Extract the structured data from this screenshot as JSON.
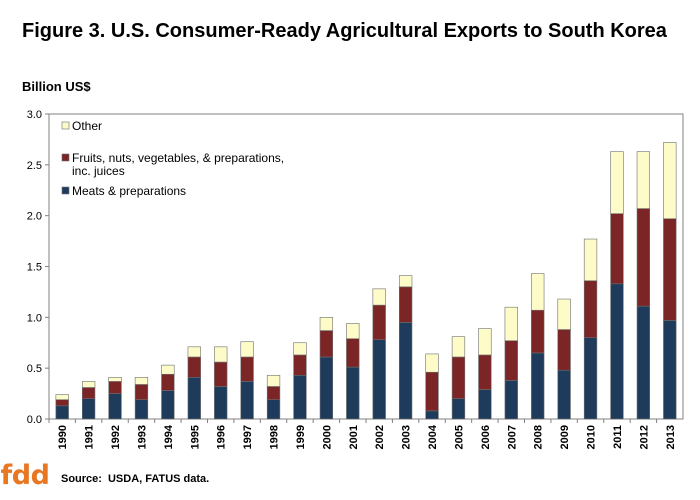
{
  "title": "Figure 3. U.S. Consumer-Ready Agricultural Exports to South Korea",
  "colors": {
    "other": "#fdfbc8",
    "fruits": "#7b2526",
    "meats": "#1f3b5c",
    "outline": "#6f6f6f",
    "plot_background": "#ffffff",
    "logo": "#e87722"
  },
  "logo": {
    "text": "fdd"
  },
  "source": {
    "label": "Source:",
    "value": "USDA, FATUS data."
  },
  "chart_data": {
    "type": "bar",
    "stacked": true,
    "ylabel": "Billion US$",
    "xlabel": "",
    "ylim": [
      0,
      3.0
    ],
    "yticks": [
      "0.0",
      "0.5",
      "1.0",
      "1.5",
      "2.0",
      "2.5",
      "3.0"
    ],
    "grid": false,
    "legend_position": "top-left",
    "categories": [
      "1990",
      "1991",
      "1992",
      "1993",
      "1994",
      "1995",
      "1996",
      "1997",
      "1998",
      "1999",
      "2000",
      "2001",
      "2002",
      "2003",
      "2004",
      "2005",
      "2006",
      "2007",
      "2008",
      "2009",
      "2010",
      "2011",
      "2012",
      "2013"
    ],
    "series": [
      {
        "name": "Meats & preparations",
        "color_key": "meats",
        "values": [
          0.13,
          0.2,
          0.25,
          0.19,
          0.28,
          0.41,
          0.32,
          0.37,
          0.19,
          0.43,
          0.61,
          0.51,
          0.78,
          0.95,
          0.08,
          0.2,
          0.29,
          0.38,
          0.65,
          0.48,
          0.8,
          1.33,
          1.11,
          0.97
        ]
      },
      {
        "name": "Fruits, nuts, vegetables, & preparations, inc. juices",
        "color_key": "fruits",
        "values": [
          0.06,
          0.11,
          0.12,
          0.15,
          0.16,
          0.2,
          0.24,
          0.24,
          0.13,
          0.2,
          0.26,
          0.28,
          0.34,
          0.35,
          0.38,
          0.41,
          0.34,
          0.39,
          0.42,
          0.4,
          0.56,
          0.69,
          0.96,
          1.0
        ]
      },
      {
        "name": "Other",
        "color_key": "other",
        "values": [
          0.05,
          0.06,
          0.04,
          0.07,
          0.09,
          0.1,
          0.15,
          0.15,
          0.11,
          0.12,
          0.13,
          0.15,
          0.16,
          0.11,
          0.18,
          0.2,
          0.26,
          0.33,
          0.36,
          0.3,
          0.41,
          0.61,
          0.56,
          0.75
        ]
      }
    ],
    "legend": [
      {
        "series": "Other",
        "lines": [
          "Other"
        ]
      },
      {
        "series": "Fruits, nuts, vegetables, & preparations, inc. juices",
        "lines": [
          "Fruits, nuts, vegetables, & preparations,",
          "inc. juices"
        ]
      },
      {
        "series": "Meats & preparations",
        "lines": [
          "Meats & preparations"
        ]
      }
    ]
  }
}
